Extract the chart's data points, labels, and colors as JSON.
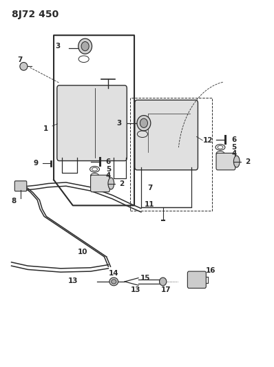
{
  "title": "8J72 450",
  "bg_color": "#ffffff",
  "line_color": "#2a2a2a",
  "title_fontsize": 10,
  "label_fontsize": 7.5,
  "fig_width": 3.98,
  "fig_height": 5.33,
  "dpi": 100
}
